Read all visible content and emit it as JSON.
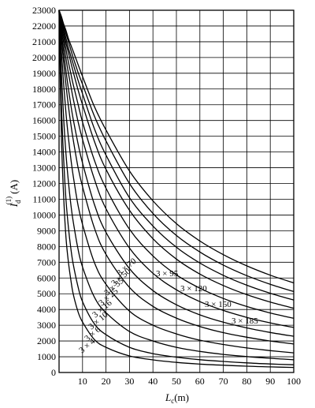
{
  "chart_data": {
    "type": "line",
    "ylabel_parts": {
      "main": "I",
      "sub": "d",
      "sup": "(1)",
      "unit": "(A)"
    },
    "xlabel_parts": {
      "main": "L",
      "sub": "c",
      "unit": "(m)"
    },
    "xlim": [
      0,
      100
    ],
    "ylim": [
      0,
      23000
    ],
    "x_ticks": [
      10,
      20,
      30,
      40,
      50,
      60,
      70,
      80,
      90,
      100
    ],
    "y_ticks": [
      0,
      1000,
      2000,
      3000,
      4000,
      5000,
      6000,
      7000,
      8000,
      9000,
      10000,
      11000,
      12000,
      13000,
      14000,
      15000,
      16000,
      17000,
      18000,
      19000,
      20000,
      21000,
      22000,
      23000
    ],
    "grid": true,
    "series": [
      {
        "name": "3×4",
        "x": [
          0,
          1,
          2,
          3,
          4,
          5,
          6,
          8,
          10,
          15,
          20,
          30,
          40,
          50,
          60,
          70,
          80,
          90,
          100
        ],
        "values": [
          23000,
          15000,
          11000,
          8500,
          7000,
          5900,
          5000,
          3900,
          3200,
          2100,
          1600,
          1050,
          800,
          640,
          530,
          460,
          400,
          355,
          320
        ]
      },
      {
        "name": "3×6",
        "x": [
          0,
          1,
          2,
          3,
          4,
          5,
          6,
          8,
          10,
          15,
          20,
          30,
          40,
          50,
          60,
          70,
          80,
          90,
          100
        ],
        "values": [
          23000,
          17000,
          13400,
          10900,
          9200,
          7900,
          6900,
          5500,
          4500,
          3100,
          2400,
          1600,
          1200,
          970,
          810,
          700,
          610,
          540,
          490
        ]
      },
      {
        "name": "3×10",
        "x": [
          0,
          1,
          2,
          3,
          4,
          5,
          6,
          8,
          10,
          15,
          20,
          30,
          40,
          50,
          60,
          70,
          80,
          90,
          100
        ],
        "values": [
          23000,
          19000,
          16000,
          13800,
          12100,
          10700,
          9600,
          7900,
          6700,
          4800,
          3800,
          2600,
          2000,
          1600,
          1340,
          1150,
          1010,
          900,
          810
        ]
      },
      {
        "name": "3×16",
        "x": [
          0,
          1,
          2,
          3,
          4,
          5,
          6,
          8,
          10,
          15,
          20,
          30,
          40,
          50,
          60,
          70,
          80,
          90,
          100
        ],
        "values": [
          23000,
          20400,
          18200,
          16400,
          14900,
          13600,
          12500,
          10700,
          9400,
          7000,
          5600,
          3900,
          3000,
          2450,
          2050,
          1780,
          1560,
          1390,
          1250
        ]
      },
      {
        "name": "3×25",
        "x": [
          0,
          1,
          2,
          3,
          4,
          5,
          6,
          8,
          10,
          15,
          20,
          30,
          40,
          50,
          60,
          70,
          80,
          90,
          100
        ],
        "values": [
          23000,
          21200,
          19600,
          18200,
          16900,
          15800,
          14800,
          13100,
          11800,
          9200,
          7500,
          5400,
          4200,
          3450,
          2920,
          2530,
          2240,
          2000,
          1810
        ]
      },
      {
        "name": "3×35",
        "x": [
          0,
          1,
          2,
          3,
          4,
          5,
          6,
          8,
          10,
          15,
          20,
          30,
          40,
          50,
          60,
          70,
          80,
          90,
          100
        ],
        "values": [
          23000,
          21600,
          20300,
          19100,
          18000,
          17000,
          16100,
          14600,
          13300,
          10700,
          8900,
          6600,
          5200,
          4300,
          3660,
          3190,
          2830,
          2540,
          2300
        ]
      },
      {
        "name": "3×50",
        "x": [
          0,
          1,
          2,
          3,
          4,
          5,
          6,
          8,
          10,
          15,
          20,
          30,
          40,
          50,
          60,
          70,
          80,
          90,
          100
        ],
        "values": [
          23000,
          21900,
          20900,
          19900,
          19000,
          18200,
          17400,
          16000,
          14800,
          12300,
          10400,
          7900,
          6300,
          5250,
          4500,
          3940,
          3500,
          3150,
          2860
        ]
      },
      {
        "name": "3×70",
        "x": [
          0,
          1,
          2,
          3,
          4,
          5,
          6,
          8,
          10,
          15,
          20,
          30,
          40,
          50,
          60,
          70,
          80,
          90,
          100
        ],
        "values": [
          23000,
          22100,
          21300,
          20500,
          19700,
          19000,
          18300,
          17100,
          15900,
          13500,
          11700,
          9100,
          7400,
          6200,
          5350,
          4700,
          4190,
          3780,
          3440
        ]
      },
      {
        "name": "3×95",
        "x": [
          0,
          1,
          2,
          3,
          4,
          5,
          6,
          8,
          10,
          15,
          20,
          30,
          40,
          50,
          60,
          70,
          80,
          90,
          100
        ],
        "values": [
          23000,
          22300,
          21600,
          20900,
          20300,
          19700,
          19100,
          18000,
          17000,
          14700,
          12900,
          10300,
          8500,
          7200,
          6250,
          5520,
          4940,
          4470,
          4080
        ]
      },
      {
        "name": "3×120",
        "x": [
          0,
          1,
          2,
          3,
          4,
          5,
          6,
          8,
          10,
          15,
          20,
          30,
          40,
          50,
          60,
          70,
          80,
          90,
          100
        ],
        "values": [
          23000,
          22400,
          21800,
          21200,
          20600,
          20100,
          19600,
          18600,
          17700,
          15500,
          13800,
          11100,
          9300,
          7950,
          6950,
          6170,
          5540,
          5030,
          4600
        ]
      },
      {
        "name": "3×150",
        "x": [
          0,
          1,
          2,
          3,
          4,
          5,
          6,
          8,
          10,
          15,
          20,
          30,
          40,
          50,
          60,
          70,
          80,
          90,
          100
        ],
        "values": [
          23000,
          22500,
          22000,
          21500,
          21000,
          20500,
          20000,
          19100,
          18300,
          16300,
          14700,
          12000,
          10100,
          8700,
          7650,
          6820,
          6150,
          5600,
          5140
        ]
      },
      {
        "name": "3×185",
        "x": [
          0,
          1,
          2,
          3,
          4,
          5,
          6,
          8,
          10,
          15,
          20,
          30,
          40,
          50,
          60,
          70,
          80,
          90,
          100
        ],
        "values": [
          23000,
          22600,
          22100,
          21700,
          21200,
          20800,
          20400,
          19600,
          18800,
          16900,
          15400,
          12800,
          10900,
          9450,
          8350,
          7480,
          6770,
          6180,
          5690
        ]
      }
    ]
  }
}
